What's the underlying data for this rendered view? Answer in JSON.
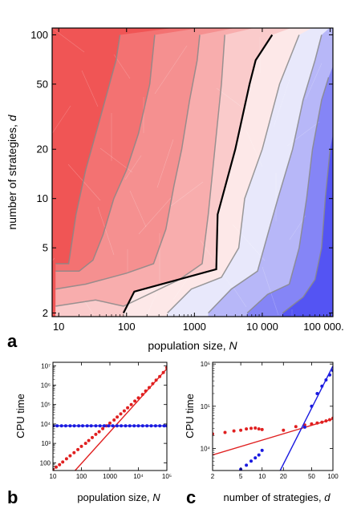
{
  "colors": {
    "red_strong": "#f05555",
    "red_light": "#fde8e8",
    "blue_light": "#e8e8fb",
    "blue_strong": "#2222f0",
    "zero_contour": "#000000",
    "contour": "#888888",
    "series_red": "#e02020",
    "series_blue": "#1a1ae0"
  },
  "chart_data": [
    {
      "id": "a",
      "type": "heatmap",
      "panel_label": "a",
      "xlabel_text": "population size, ",
      "xlabel_var": "N",
      "ylabel_text": "number of strategies, ",
      "ylabel_var": "d",
      "x_scale": "log",
      "y_scale": "log",
      "xlim": [
        8,
        110000
      ],
      "ylim": [
        1.9,
        110
      ],
      "x_ticks": [
        {
          "value": 10,
          "label": "10"
        },
        {
          "value": 100,
          "label": "100"
        },
        {
          "value": 1000,
          "label": "1000"
        },
        {
          "value": 10000,
          "label": "10 000"
        },
        {
          "value": 100000,
          "label": "100 000."
        }
      ],
      "y_ticks": [
        {
          "value": 2,
          "label": "2"
        },
        {
          "value": 5,
          "label": "5"
        },
        {
          "value": 10,
          "label": "10"
        },
        {
          "value": 20,
          "label": "20"
        },
        {
          "value": 50,
          "label": "50"
        },
        {
          "value": 100,
          "label": "100"
        }
      ],
      "contours": [
        {
          "level": -4,
          "points": [
            [
              9,
              4
            ],
            [
              14,
              4
            ],
            [
              18,
              8
            ],
            [
              25,
              15
            ],
            [
              40,
              30
            ],
            [
              70,
              70
            ],
            [
              80,
              100
            ]
          ]
        },
        {
          "level": -3,
          "points": [
            [
              9,
              3.6
            ],
            [
              20,
              3.6
            ],
            [
              32,
              4.2
            ],
            [
              45,
              6
            ],
            [
              65,
              10
            ],
            [
              100,
              15
            ],
            [
              150,
              25
            ],
            [
              220,
              50
            ],
            [
              260,
              100
            ]
          ]
        },
        {
          "level": -2,
          "points": [
            [
              9,
              2.8
            ],
            [
              25,
              3
            ],
            [
              100,
              3.5
            ],
            [
              250,
              4
            ],
            [
              380,
              6.5
            ],
            [
              500,
              12
            ],
            [
              650,
              20
            ],
            [
              850,
              40
            ],
            [
              1100,
              70
            ],
            [
              1200,
              100
            ]
          ]
        },
        {
          "level": -1,
          "points": [
            [
              9,
              2.2
            ],
            [
              35,
              2.4
            ],
            [
              90,
              2.2
            ],
            [
              600,
              3.2
            ],
            [
              1300,
              4
            ],
            [
              1600,
              8
            ],
            [
              2000,
              20
            ],
            [
              2500,
              50
            ],
            [
              2800,
              100
            ]
          ]
        },
        {
          "level": 0,
          "points": [
            [
              90,
              2
            ],
            [
              130,
              2.7
            ],
            [
              2100,
              3.7
            ],
            [
              2200,
              8
            ],
            [
              4000,
              20
            ],
            [
              6500,
              50
            ],
            [
              8000,
              70
            ],
            [
              14000,
              100
            ]
          ]
        },
        {
          "level": 1,
          "points": [
            [
              400,
              2
            ],
            [
              900,
              2.8
            ],
            [
              2500,
              3.3
            ],
            [
              4500,
              5
            ],
            [
              5500,
              10
            ],
            [
              10000,
              20
            ],
            [
              18000,
              50
            ],
            [
              35000,
              100
            ]
          ]
        },
        {
          "level": 2,
          "points": [
            [
              1600,
              2
            ],
            [
              3500,
              2.8
            ],
            [
              8500,
              3.6
            ],
            [
              12000,
              6
            ],
            [
              17000,
              10
            ],
            [
              28000,
              20
            ],
            [
              40000,
              40
            ],
            [
              60000,
              70
            ],
            [
              75000,
              100
            ]
          ]
        },
        {
          "level": 3,
          "points": [
            [
              6000,
              2
            ],
            [
              12000,
              2.6
            ],
            [
              25000,
              3
            ],
            [
              35000,
              5
            ],
            [
              45000,
              10
            ],
            [
              55000,
              20
            ],
            [
              75000,
              40
            ],
            [
              95000,
              55
            ]
          ]
        },
        {
          "level": 4,
          "points": [
            [
              20000,
              2
            ],
            [
              40000,
              2.5
            ],
            [
              60000,
              3.2
            ],
            [
              75000,
              5
            ],
            [
              85000,
              10
            ],
            [
              100000,
              20
            ]
          ]
        }
      ]
    },
    {
      "id": "b",
      "type": "scatter",
      "panel_label": "b",
      "ylabel": "CPU time",
      "xlabel_text": "population size, ",
      "xlabel_var": "N",
      "x_scale": "log",
      "y_scale": "log",
      "xlim": [
        10,
        100000
      ],
      "ylim": [
        40,
        15000000
      ],
      "x_ticks": [
        {
          "value": 10,
          "label": "10"
        },
        {
          "value": 100,
          "label": "100"
        },
        {
          "value": 1000,
          "label": "1000"
        },
        {
          "value": 10000,
          "label": "10⁴"
        },
        {
          "value": 100000,
          "label": "10⁵"
        }
      ],
      "y_ticks": [
        {
          "value": 100,
          "label": "100"
        },
        {
          "value": 1000,
          "label": "10³"
        },
        {
          "value": 10000,
          "label": "10⁴"
        },
        {
          "value": 100000,
          "label": "10⁵"
        },
        {
          "value": 1000000,
          "label": "10⁶"
        },
        {
          "value": 10000000,
          "label": "10⁷"
        }
      ],
      "series": [
        {
          "color": "red",
          "points": [
            [
              10,
              45
            ],
            [
              13,
              60
            ],
            [
              17,
              80
            ],
            [
              22,
              110
            ],
            [
              30,
              160
            ],
            [
              40,
              230
            ],
            [
              55,
              330
            ],
            [
              75,
              480
            ],
            [
              100,
              700
            ],
            [
              140,
              1000
            ],
            [
              180,
              1400
            ],
            [
              240,
              2000
            ],
            [
              320,
              2900
            ],
            [
              420,
              4000
            ],
            [
              560,
              5700
            ],
            [
              750,
              8000
            ],
            [
              1000,
              11000
            ],
            [
              1400,
              16000
            ],
            [
              1800,
              23000
            ],
            [
              2400,
              33000
            ],
            [
              3200,
              47000
            ],
            [
              4200,
              68000
            ],
            [
              5600,
              100000
            ],
            [
              7500,
              150000
            ],
            [
              10000,
              220000
            ],
            [
              14000,
              330000
            ],
            [
              18000,
              500000
            ],
            [
              24000,
              750000
            ],
            [
              32000,
              1200000
            ],
            [
              42000,
              1800000
            ],
            [
              56000,
              2800000
            ],
            [
              75000,
              4500000
            ],
            [
              100000,
              8000000
            ]
          ],
          "fit": [
            [
              60,
              40
            ],
            [
              100000,
              7000000
            ]
          ]
        },
        {
          "color": "blue",
          "points": [
            [
              10,
              8000
            ],
            [
              14,
              8000
            ],
            [
              20,
              8000
            ],
            [
              28,
              8000
            ],
            [
              40,
              8000
            ],
            [
              56,
              8000
            ],
            [
              80,
              8000
            ],
            [
              110,
              8000
            ],
            [
              160,
              8000
            ],
            [
              220,
              8000
            ],
            [
              320,
              8000
            ],
            [
              450,
              8000
            ],
            [
              630,
              8000
            ],
            [
              900,
              8000
            ],
            [
              1260,
              8000
            ],
            [
              1780,
              8000
            ],
            [
              2500,
              8000
            ],
            [
              3550,
              8000
            ],
            [
              5000,
              8000
            ],
            [
              7080,
              8000
            ],
            [
              10000,
              8000
            ],
            [
              14100,
              8000
            ],
            [
              20000,
              8000
            ],
            [
              28200,
              8000
            ],
            [
              40000,
              8000
            ],
            [
              56400,
              8000
            ],
            [
              80000,
              8000
            ],
            [
              100000,
              8000
            ]
          ],
          "fit": [
            [
              10,
              8000
            ],
            [
              100000,
              8000
            ]
          ]
        }
      ]
    },
    {
      "id": "c",
      "type": "scatter",
      "panel_label": "c",
      "ylabel": "CPU time",
      "xlabel_text": "number of strategies, ",
      "xlabel_var": "d",
      "x_scale": "log",
      "y_scale": "log",
      "xlim": [
        2,
        100
      ],
      "ylim": [
        3000,
        1100000
      ],
      "x_ticks": [
        {
          "value": 2,
          "label": "2"
        },
        {
          "value": 5,
          "label": "5"
        },
        {
          "value": 10,
          "label": "10"
        },
        {
          "value": 20,
          "label": "20"
        },
        {
          "value": 50,
          "label": "50"
        },
        {
          "value": 100,
          "label": "100"
        }
      ],
      "y_ticks": [
        {
          "value": 10000,
          "label": "10⁴"
        },
        {
          "value": 100000,
          "label": "10⁵"
        },
        {
          "value": 1000000,
          "label": "10⁶"
        }
      ],
      "series": [
        {
          "color": "red",
          "points": [
            [
              2,
              22000
            ],
            [
              3,
              24000
            ],
            [
              4,
              26000
            ],
            [
              5,
              27000
            ],
            [
              6,
              29000
            ],
            [
              7,
              30000
            ],
            [
              8,
              30500
            ],
            [
              9,
              29000
            ],
            [
              10,
              28000
            ],
            [
              20,
              27000
            ],
            [
              30,
              33000
            ],
            [
              40,
              36000
            ],
            [
              50,
              38000
            ],
            [
              60,
              40000
            ],
            [
              70,
              42000
            ],
            [
              80,
              45000
            ],
            [
              90,
              48000
            ],
            [
              100,
              52000
            ]
          ],
          "fit": [
            [
              2,
              7000
            ],
            [
              100,
              50000
            ]
          ]
        },
        {
          "color": "blue",
          "points": [
            [
              5,
              3200
            ],
            [
              6,
              4000
            ],
            [
              7,
              5000
            ],
            [
              8,
              6000
            ],
            [
              9,
              7000
            ],
            [
              10,
              9000
            ],
            [
              40,
              32000
            ],
            [
              50,
              100000
            ],
            [
              60,
              200000
            ],
            [
              70,
              300000
            ],
            [
              80,
              420000
            ],
            [
              90,
              550000
            ],
            [
              100,
              700000
            ]
          ],
          "fit": [
            [
              18,
              3000
            ],
            [
              100,
              900000
            ]
          ]
        }
      ]
    }
  ]
}
